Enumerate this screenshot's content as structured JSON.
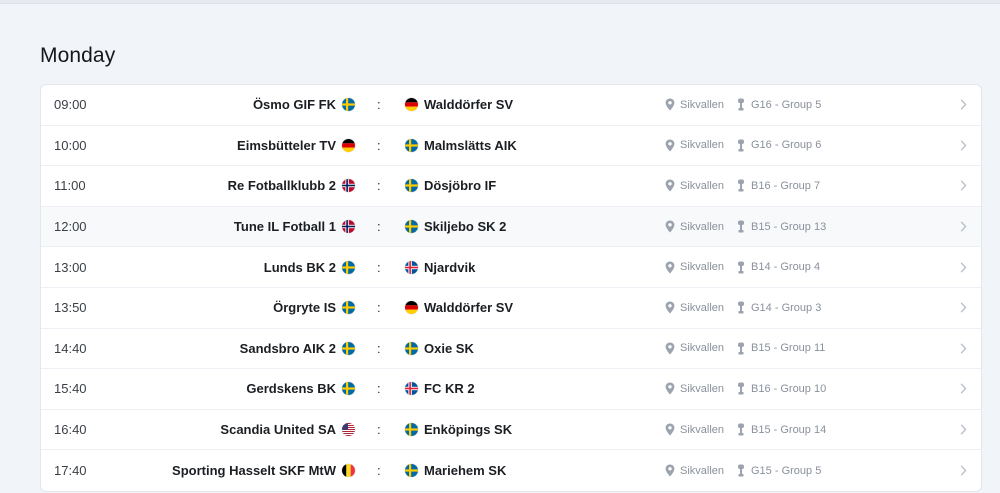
{
  "day": "Monday",
  "matches": [
    {
      "time": "09:00",
      "home": "Ösmo GIF FK",
      "home_flag": "se",
      "sep": ":",
      "away": "Walddörfer SV",
      "away_flag": "de",
      "venue": "Sikvallen",
      "group": "G16 - Group 5"
    },
    {
      "time": "10:00",
      "home": "Eimsbütteler TV",
      "home_flag": "de",
      "sep": ":",
      "away": "Malmslätts AIK",
      "away_flag": "se",
      "venue": "Sikvallen",
      "group": "G16 - Group 6"
    },
    {
      "time": "11:00",
      "home": "Re Fotballklubb 2",
      "home_flag": "no",
      "sep": ":",
      "away": "Dösjöbro IF",
      "away_flag": "se",
      "venue": "Sikvallen",
      "group": "B16 - Group 7"
    },
    {
      "time": "12:00",
      "home": "Tune IL Fotball 1",
      "home_flag": "no",
      "sep": ":",
      "away": "Skiljebo SK 2",
      "away_flag": "se",
      "venue": "Sikvallen",
      "group": "B15 - Group 13"
    },
    {
      "time": "13:00",
      "home": "Lunds BK 2",
      "home_flag": "se",
      "sep": ":",
      "away": "Njardvik",
      "away_flag": "is",
      "venue": "Sikvallen",
      "group": "B14 - Group 4"
    },
    {
      "time": "13:50",
      "home": "Örgryte IS",
      "home_flag": "se",
      "sep": ":",
      "away": "Walddörfer SV",
      "away_flag": "de",
      "venue": "Sikvallen",
      "group": "G14 - Group 3"
    },
    {
      "time": "14:40",
      "home": "Sandsbro AIK 2",
      "home_flag": "se",
      "sep": ":",
      "away": "Oxie SK",
      "away_flag": "se",
      "venue": "Sikvallen",
      "group": "B15 - Group 11"
    },
    {
      "time": "15:40",
      "home": "Gerdskens BK",
      "home_flag": "se",
      "sep": ":",
      "away": "FC KR 2",
      "away_flag": "is",
      "venue": "Sikvallen",
      "group": "B16 - Group 10"
    },
    {
      "time": "16:40",
      "home": "Scandia United SA",
      "home_flag": "us",
      "sep": ":",
      "away": "Enköpings SK",
      "away_flag": "se",
      "venue": "Sikvallen",
      "group": "B15 - Group 14"
    },
    {
      "time": "17:40",
      "home": "Sporting Hasselt SKF MtW",
      "home_flag": "be",
      "sep": ":",
      "away": "Mariehem SK",
      "away_flag": "se",
      "venue": "Sikvallen",
      "group": "G15 - Group 5"
    }
  ],
  "icons": {
    "venue": "location-pin-icon",
    "group": "trophy-icon",
    "row_action": "chevron-right-icon"
  },
  "colors": {
    "background": "#f1f4f8",
    "card": "#ffffff",
    "muted_text": "#8a919b",
    "icon": "#9aa3ae"
  }
}
